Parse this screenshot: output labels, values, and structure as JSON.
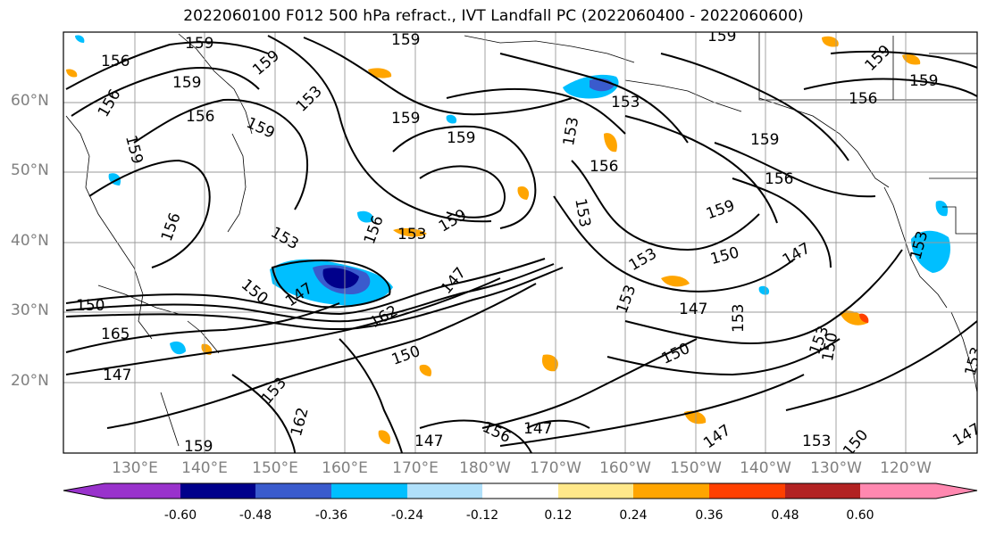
{
  "title": "2022060100 F012 500 hPa refract., IVT Landfall PC (2022060400 - 2022060600)",
  "lat_labels": [
    "60°N",
    "50°N",
    "40°N",
    "30°N",
    "20°N"
  ],
  "lon_labels": [
    "130°E",
    "140°E",
    "150°E",
    "160°E",
    "170°E",
    "180°W",
    "170°W",
    "160°W",
    "150°W",
    "140°W",
    "130°W",
    "120°W"
  ],
  "contour_labels": [
    "159",
    "159",
    "159",
    "156",
    "159",
    "159",
    "156",
    "153",
    "156",
    "159",
    "159",
    "159",
    "153",
    "159",
    "156",
    "156",
    "159",
    "159",
    "159",
    "156",
    "153",
    "156",
    "153",
    "159",
    "156",
    "147",
    "153",
    "153",
    "159",
    "150",
    "147",
    "162",
    "150",
    "153",
    "147",
    "153",
    "153",
    "150",
    "165",
    "153",
    "147",
    "147",
    "153",
    "150",
    "147",
    "153",
    "150",
    "147",
    "147",
    "150",
    "159",
    "162",
    "156",
    "153",
    "150",
    "153",
    "147"
  ],
  "colorbar": {
    "ticks": [
      "-0.60",
      "-0.48",
      "-0.36",
      "-0.24",
      "-0.12",
      "0.12",
      "0.24",
      "0.36",
      "0.48",
      "0.60"
    ],
    "bins": [
      {
        "color": "#9932cc"
      },
      {
        "color": "#00008b"
      },
      {
        "color": "#3a5bcd"
      },
      {
        "color": "#00bfff"
      },
      {
        "color": "#b0e0fa"
      },
      {
        "color": "#ffffff"
      },
      {
        "color": "#ffe88a"
      },
      {
        "color": "#ffa500"
      },
      {
        "color": "#ff4000"
      },
      {
        "color": "#b22222"
      },
      {
        "color": "#ff88b0"
      }
    ]
  }
}
